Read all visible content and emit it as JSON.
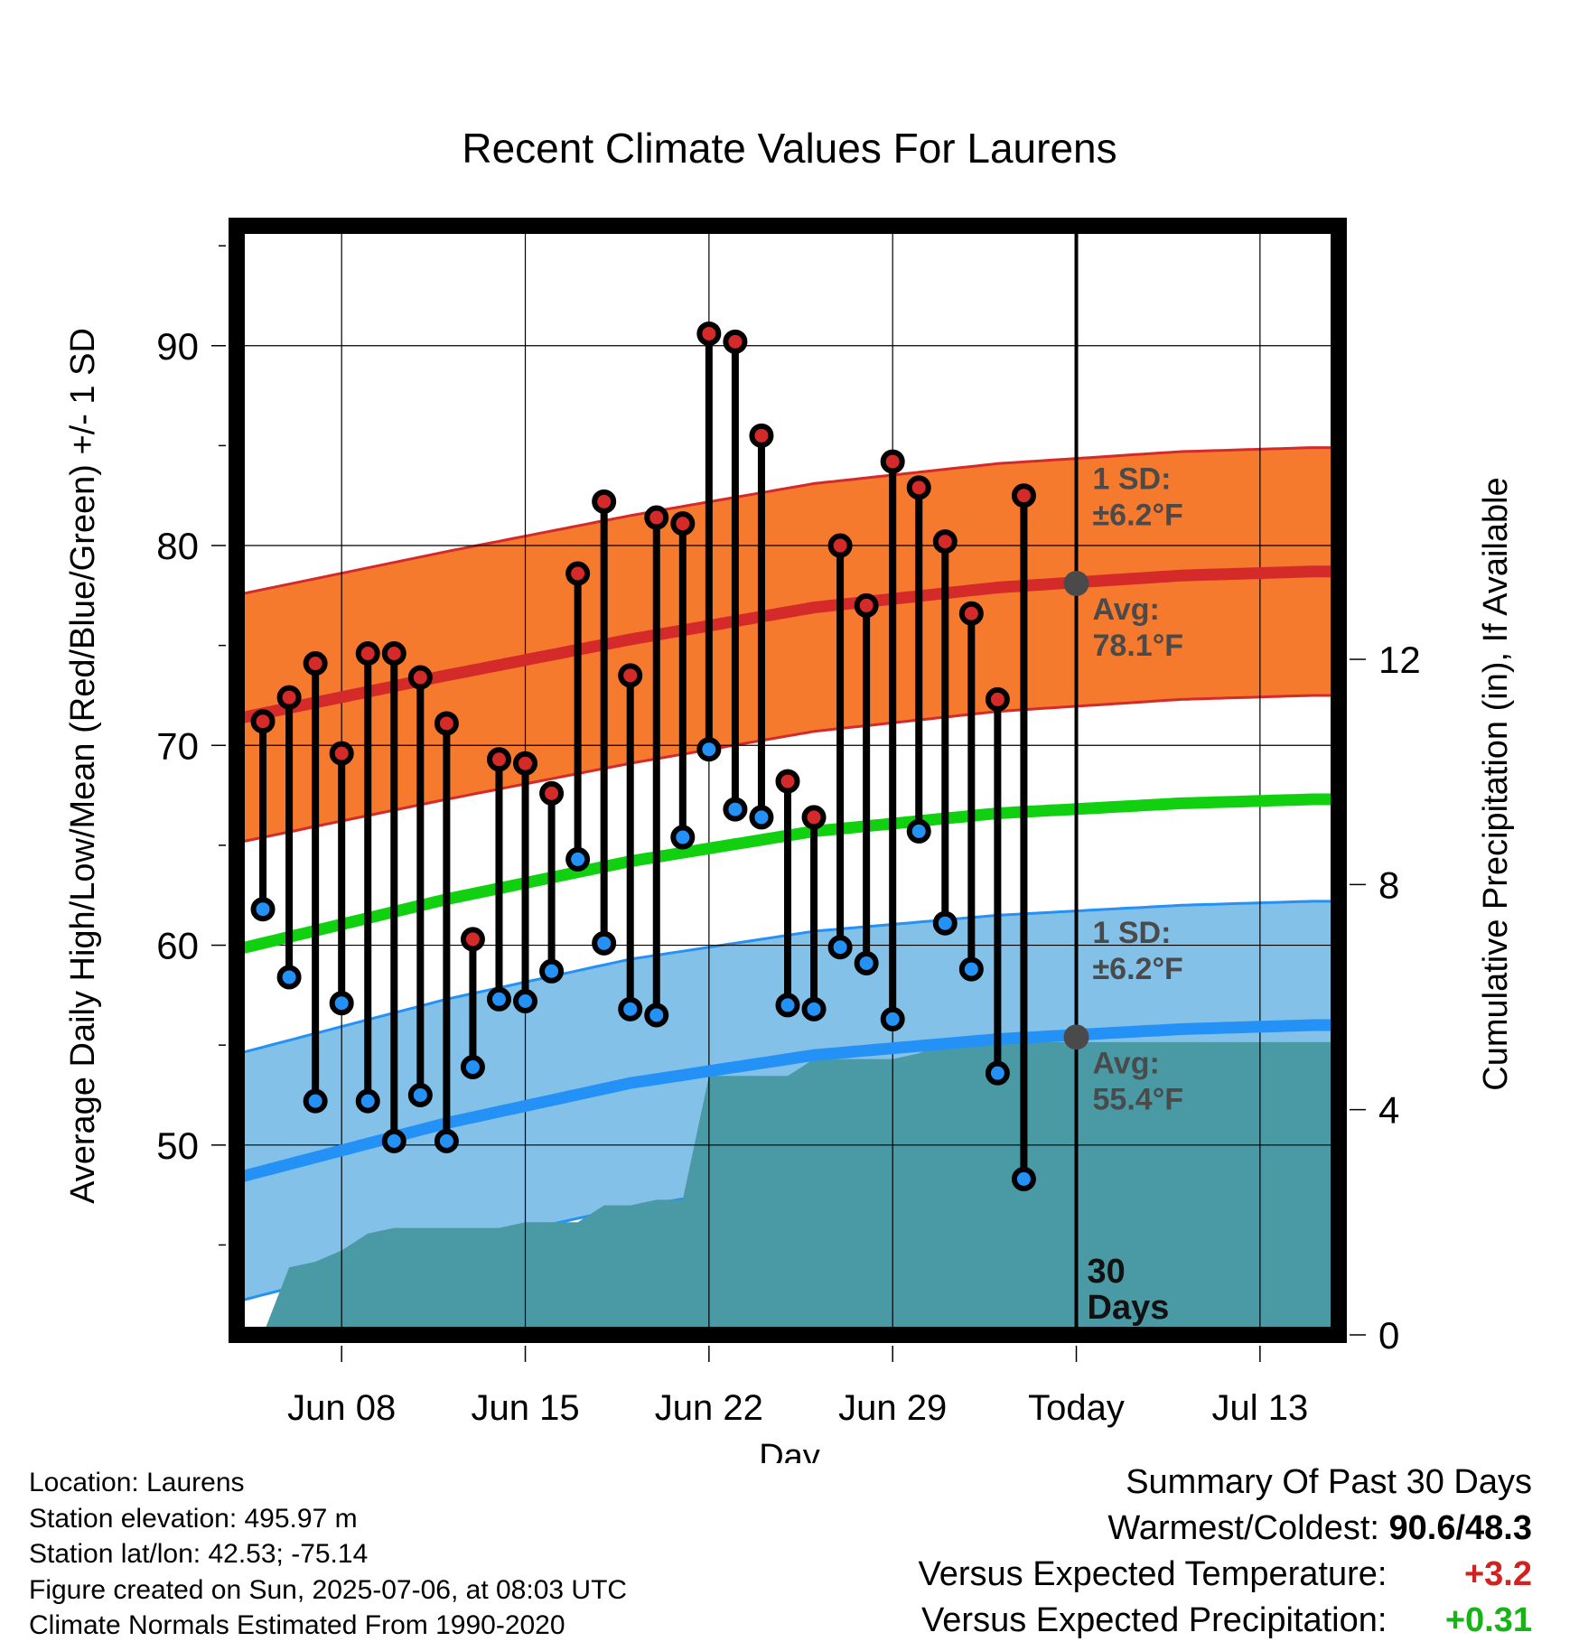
{
  "chart_data": {
    "type": "line",
    "title": "Recent Climate Values For Laurens",
    "xlabel": "Day",
    "ylabel": "Average Daily High/Low/Mean (Red/Blue/Green) +/- 1 SD",
    "y2label": "Cumulative Precipitation (in), If Available",
    "xlim": [
      "2025-06-04",
      "2025-07-16"
    ],
    "ylim": [
      40.5,
      96
    ],
    "y2lim": [
      0,
      19.7
    ],
    "x_ticks": [
      {
        "date": "2025-06-08",
        "label": "Jun 08"
      },
      {
        "date": "2025-06-15",
        "label": "Jun 15"
      },
      {
        "date": "2025-06-22",
        "label": "Jun 22"
      },
      {
        "date": "2025-06-29",
        "label": "Jun 29"
      },
      {
        "date": "2025-07-06",
        "label": "Today"
      },
      {
        "date": "2025-07-13",
        "label": "Jul 13"
      }
    ],
    "y_ticks": [
      50,
      60,
      70,
      80,
      90
    ],
    "y2_ticks": [
      0,
      4,
      8,
      12
    ],
    "grid": true,
    "colors": {
      "high_band": "#f57a2e",
      "high_avg": "#d42a2a",
      "low_band": "#84c1e8",
      "low_avg": "#2391f5",
      "mean": "#10d010",
      "precip": "#4a9aa6",
      "high_dot": "#d42a2a",
      "low_dot": "#2391f5"
    },
    "normals_x": [
      "2025-06-05",
      "2025-06-12",
      "2025-06-19",
      "2025-06-26",
      "2025-07-03",
      "2025-07-10",
      "2025-07-15"
    ],
    "normal_high": [
      71.6,
      73.5,
      75.3,
      76.9,
      77.9,
      78.5,
      78.7
    ],
    "normal_low": [
      48.7,
      51.1,
      53.1,
      54.5,
      55.3,
      55.8,
      56.0
    ],
    "normal_mean": [
      60.1,
      62.3,
      64.2,
      65.7,
      66.6,
      67.1,
      67.3
    ],
    "high_sd": 6.2,
    "low_sd": 6.2,
    "observations": {
      "dates": [
        "2025-06-05",
        "2025-06-06",
        "2025-06-07",
        "2025-06-08",
        "2025-06-09",
        "2025-06-10",
        "2025-06-11",
        "2025-06-12",
        "2025-06-13",
        "2025-06-14",
        "2025-06-15",
        "2025-06-16",
        "2025-06-17",
        "2025-06-18",
        "2025-06-19",
        "2025-06-20",
        "2025-06-21",
        "2025-06-22",
        "2025-06-23",
        "2025-06-24",
        "2025-06-25",
        "2025-06-26",
        "2025-06-27",
        "2025-06-28",
        "2025-06-29",
        "2025-06-30",
        "2025-07-01",
        "2025-07-02",
        "2025-07-03",
        "2025-07-04",
        "2025-07-05"
      ],
      "high": [
        71.2,
        72.4,
        74.1,
        69.6,
        74.6,
        74.6,
        73.4,
        71.1,
        60.3,
        69.3,
        69.1,
        67.6,
        78.6,
        82.2,
        73.5,
        81.4,
        81.1,
        90.6,
        90.2,
        85.5,
        68.2,
        66.4,
        80.0,
        77.0,
        84.2,
        82.9,
        80.2,
        76.6,
        72.3,
        82.5,
        null
      ],
      "low": [
        61.8,
        58.4,
        52.2,
        57.1,
        52.2,
        50.2,
        52.5,
        50.2,
        53.9,
        57.3,
        57.2,
        58.7,
        64.3,
        60.1,
        56.8,
        56.5,
        65.4,
        69.8,
        66.8,
        66.4,
        57.0,
        56.8,
        59.9,
        59.1,
        56.3,
        65.7,
        61.1,
        58.8,
        53.6,
        48.3,
        null
      ]
    },
    "precip_cum": {
      "dates": [
        "2025-06-04",
        "2025-06-05",
        "2025-06-06",
        "2025-06-07",
        "2025-06-08",
        "2025-06-09",
        "2025-06-10",
        "2025-06-11",
        "2025-06-12",
        "2025-06-13",
        "2025-06-14",
        "2025-06-15",
        "2025-06-16",
        "2025-06-17",
        "2025-06-18",
        "2025-06-19",
        "2025-06-20",
        "2025-06-21",
        "2025-06-22",
        "2025-06-23",
        "2025-06-24",
        "2025-06-25",
        "2025-06-26",
        "2025-06-27",
        "2025-06-28",
        "2025-06-29",
        "2025-06-30",
        "2025-07-01",
        "2025-07-02",
        "2025-07-03",
        "2025-07-04",
        "2025-07-05",
        "2025-07-16"
      ],
      "values": [
        0,
        0,
        1.2,
        1.3,
        1.5,
        1.8,
        1.9,
        1.9,
        1.9,
        1.9,
        1.9,
        2.0,
        2.0,
        2.0,
        2.3,
        2.3,
        2.4,
        2.4,
        4.6,
        4.6,
        4.6,
        4.6,
        4.9,
        4.9,
        4.9,
        4.9,
        5.0,
        5.2,
        5.2,
        5.2,
        5.2,
        5.2,
        5.2
      ]
    },
    "today_date": "2025-07-06",
    "annotations": {
      "high_sd_label": [
        "1 SD:",
        "±6.2°F"
      ],
      "high_avg_label": [
        "Avg:",
        "78.1°F"
      ],
      "high_avg_value": 78.1,
      "low_sd_label": [
        "1 SD:",
        "±6.2°F"
      ],
      "low_avg_label": [
        "Avg:",
        "55.4°F"
      ],
      "low_avg_value": 55.4,
      "days_label": [
        "30",
        "Days"
      ]
    }
  },
  "metadata": {
    "location": "Location: Laurens",
    "elevation": "Station elevation: 495.97 m",
    "latlon": "Station lat/lon: 42.53; -75.14",
    "created": "Figure created on Sun, 2025-07-06, at 08:03 UTC",
    "normals": "Climate Normals Estimated From 1990-2020"
  },
  "summary": {
    "heading": "Summary Of Past 30 Days",
    "warmest_label": "Warmest/Coldest:",
    "warmest_value": "90.6/48.3",
    "temp_label": "Versus Expected Temperature:",
    "temp_value": "+3.2",
    "precip_label": "Versus Expected Precipitation:",
    "precip_value": "+0.31"
  }
}
